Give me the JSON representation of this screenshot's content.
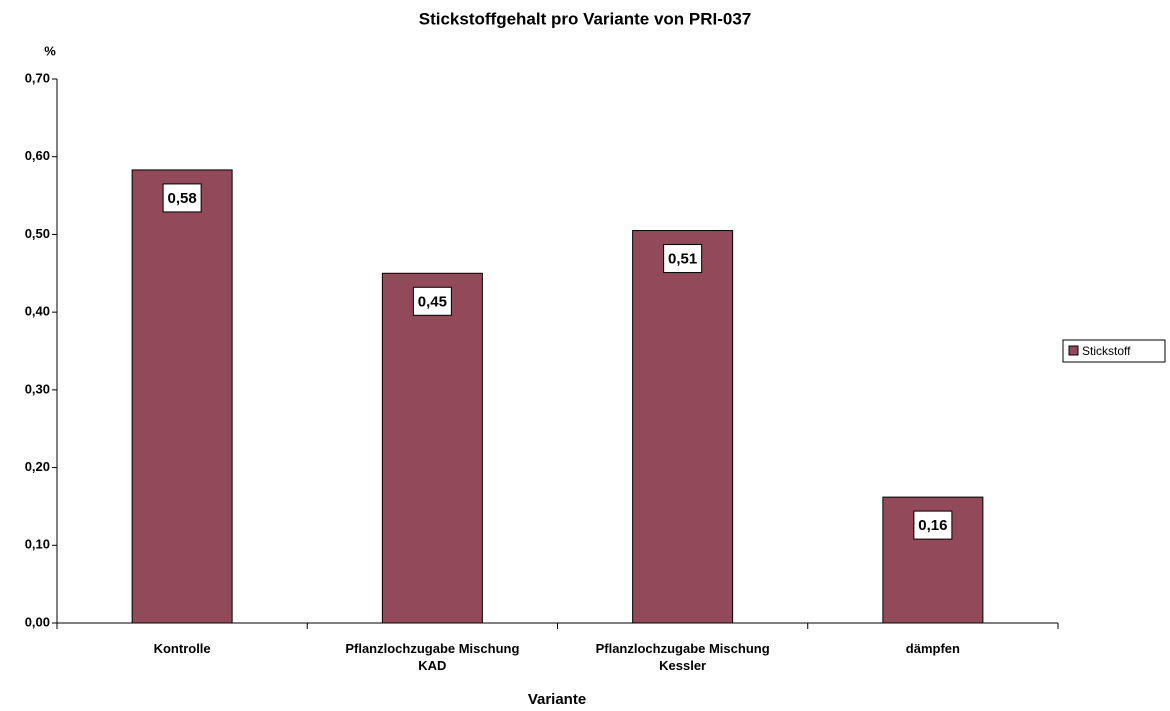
{
  "chart_data": {
    "type": "bar",
    "title": "Stickstoffgehalt pro Variante von PRI-037",
    "y_axis_label": "%",
    "x_axis_label": "Variante",
    "categories": [
      "Kontrolle",
      "Pflanzlochzugabe Mischung KAD",
      "Pflanzlochzugabe Mischung Kessler",
      "dämpfen"
    ],
    "series": [
      {
        "name": "Stickstoff",
        "color": "#924a5a",
        "values": [
          0.583,
          0.45,
          0.505,
          0.162
        ],
        "value_labels": [
          "0,58",
          "0,45",
          "0,51",
          "0,16"
        ]
      }
    ],
    "ylim": [
      0,
      0.7
    ],
    "yticks": [
      {
        "value": 0,
        "label": "0,00"
      },
      {
        "value": 0.1,
        "label": "0,10"
      },
      {
        "value": 0.2,
        "label": "0,20"
      },
      {
        "value": 0.3,
        "label": "0,30"
      },
      {
        "value": 0.4,
        "label": "0,40"
      },
      {
        "value": 0.5,
        "label": "0,50"
      },
      {
        "value": 0.6,
        "label": "0,60"
      },
      {
        "value": 0.7,
        "label": "0,70"
      }
    ],
    "grid": false,
    "legend": "right"
  }
}
